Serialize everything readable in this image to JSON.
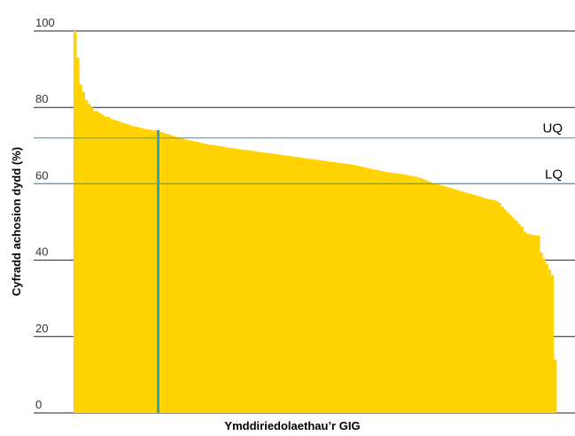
{
  "chart_data": {
    "type": "bar",
    "title": "",
    "xlabel": "Ymddiriedolaethau’r GIG",
    "ylabel": "Cyfradd achosion dydd (%)",
    "ylim": [
      0,
      100
    ],
    "yticks": [
      0,
      20,
      40,
      60,
      80,
      100
    ],
    "ytick_labels": [
      "0",
      "20",
      "40",
      "60",
      "80",
      "100"
    ],
    "grid": "horizontal",
    "reference_lines": [
      {
        "label": "UQ",
        "value": 72
      },
      {
        "label": "LQ",
        "value": 60
      }
    ],
    "highlight": {
      "category_index": 30,
      "value": 74
    },
    "colors": {
      "bars": "#FFD200",
      "reference_lines": "#36A9C9",
      "highlight": "#2BA7C2",
      "grid": "#222222"
    },
    "series": [
      {
        "values": [
          100,
          93,
          86,
          84,
          82,
          81,
          80,
          79,
          79,
          78.5,
          78,
          77.5,
          77.5,
          77,
          76.8,
          76.5,
          76.3,
          76,
          75.8,
          75.6,
          75.3,
          75.1,
          75,
          74.8,
          74.6,
          74.4,
          74.2,
          74.2,
          74,
          74,
          74,
          73.6,
          73.3,
          73.1,
          72.9,
          72.6,
          72.4,
          72.2,
          72,
          71.8,
          71.6,
          71.4,
          71.3,
          71.1,
          71,
          70.8,
          70.6,
          70.5,
          70.3,
          70.2,
          70.1,
          70,
          69.9,
          69.8,
          69.6,
          69.5,
          69.4,
          69.3,
          69.2,
          69.1,
          69,
          68.9,
          68.8,
          68.7,
          68.6,
          68.5,
          68.4,
          68.3,
          68.2,
          68.1,
          68,
          67.9,
          67.8,
          67.7,
          67.6,
          67.5,
          67.4,
          67.3,
          67.2,
          67.1,
          67,
          66.9,
          66.8,
          66.7,
          66.6,
          66.5,
          66.4,
          66.3,
          66.2,
          66.1,
          66,
          65.9,
          65.8,
          65.7,
          65.6,
          65.5,
          65.4,
          65.3,
          65.2,
          65.1,
          65,
          64.9,
          64.7,
          64.5,
          64.4,
          64.2,
          64,
          63.9,
          63.7,
          63.6,
          63.4,
          63.3,
          63.1,
          63,
          62.9,
          62.8,
          62.7,
          62.6,
          62.5,
          62.4,
          62.2,
          62.1,
          62,
          61.8,
          61.6,
          61.4,
          61.1,
          60.8,
          60.5,
          60.2,
          60,
          59.8,
          59.6,
          59.4,
          59.2,
          59,
          58.8,
          58.6,
          58.3,
          58.1,
          57.9,
          57.7,
          57.5,
          57.3,
          57.1,
          56.9,
          56.6,
          56.4,
          56.2,
          56,
          55.9,
          55.7,
          55.5,
          55,
          54,
          53.2,
          52.5,
          51.8,
          51,
          50.3,
          49.5,
          48.8,
          47.5,
          47,
          46.8,
          46.6,
          46.5,
          46.4,
          42,
          40.5,
          39,
          37.5,
          36,
          14
        ]
      }
    ]
  }
}
